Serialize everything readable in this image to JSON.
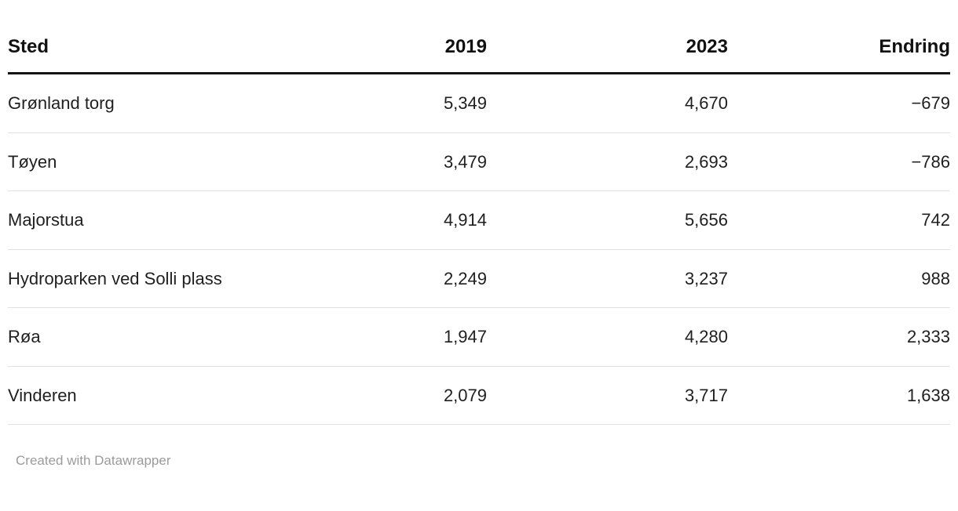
{
  "chart_data": {
    "type": "table",
    "columns": [
      "Sted",
      "2019",
      "2023",
      "Endring"
    ],
    "rows": [
      [
        "Grønland torg",
        "5,349",
        "4,670",
        "−679"
      ],
      [
        "Tøyen",
        "3,479",
        "2,693",
        "−786"
      ],
      [
        "Majorstua",
        "4,914",
        "5,656",
        "742"
      ],
      [
        "Hydroparken ved Solli plass",
        "2,249",
        "3,237",
        "988"
      ],
      [
        "Røa",
        "1,947",
        "4,280",
        "2,333"
      ],
      [
        "Vinderen",
        "2,079",
        "3,717",
        "1,638"
      ]
    ],
    "title": "",
    "legend": "none",
    "grid": "horizontal-row-separators"
  },
  "footer": {
    "attribution": "Created with Datawrapper"
  }
}
